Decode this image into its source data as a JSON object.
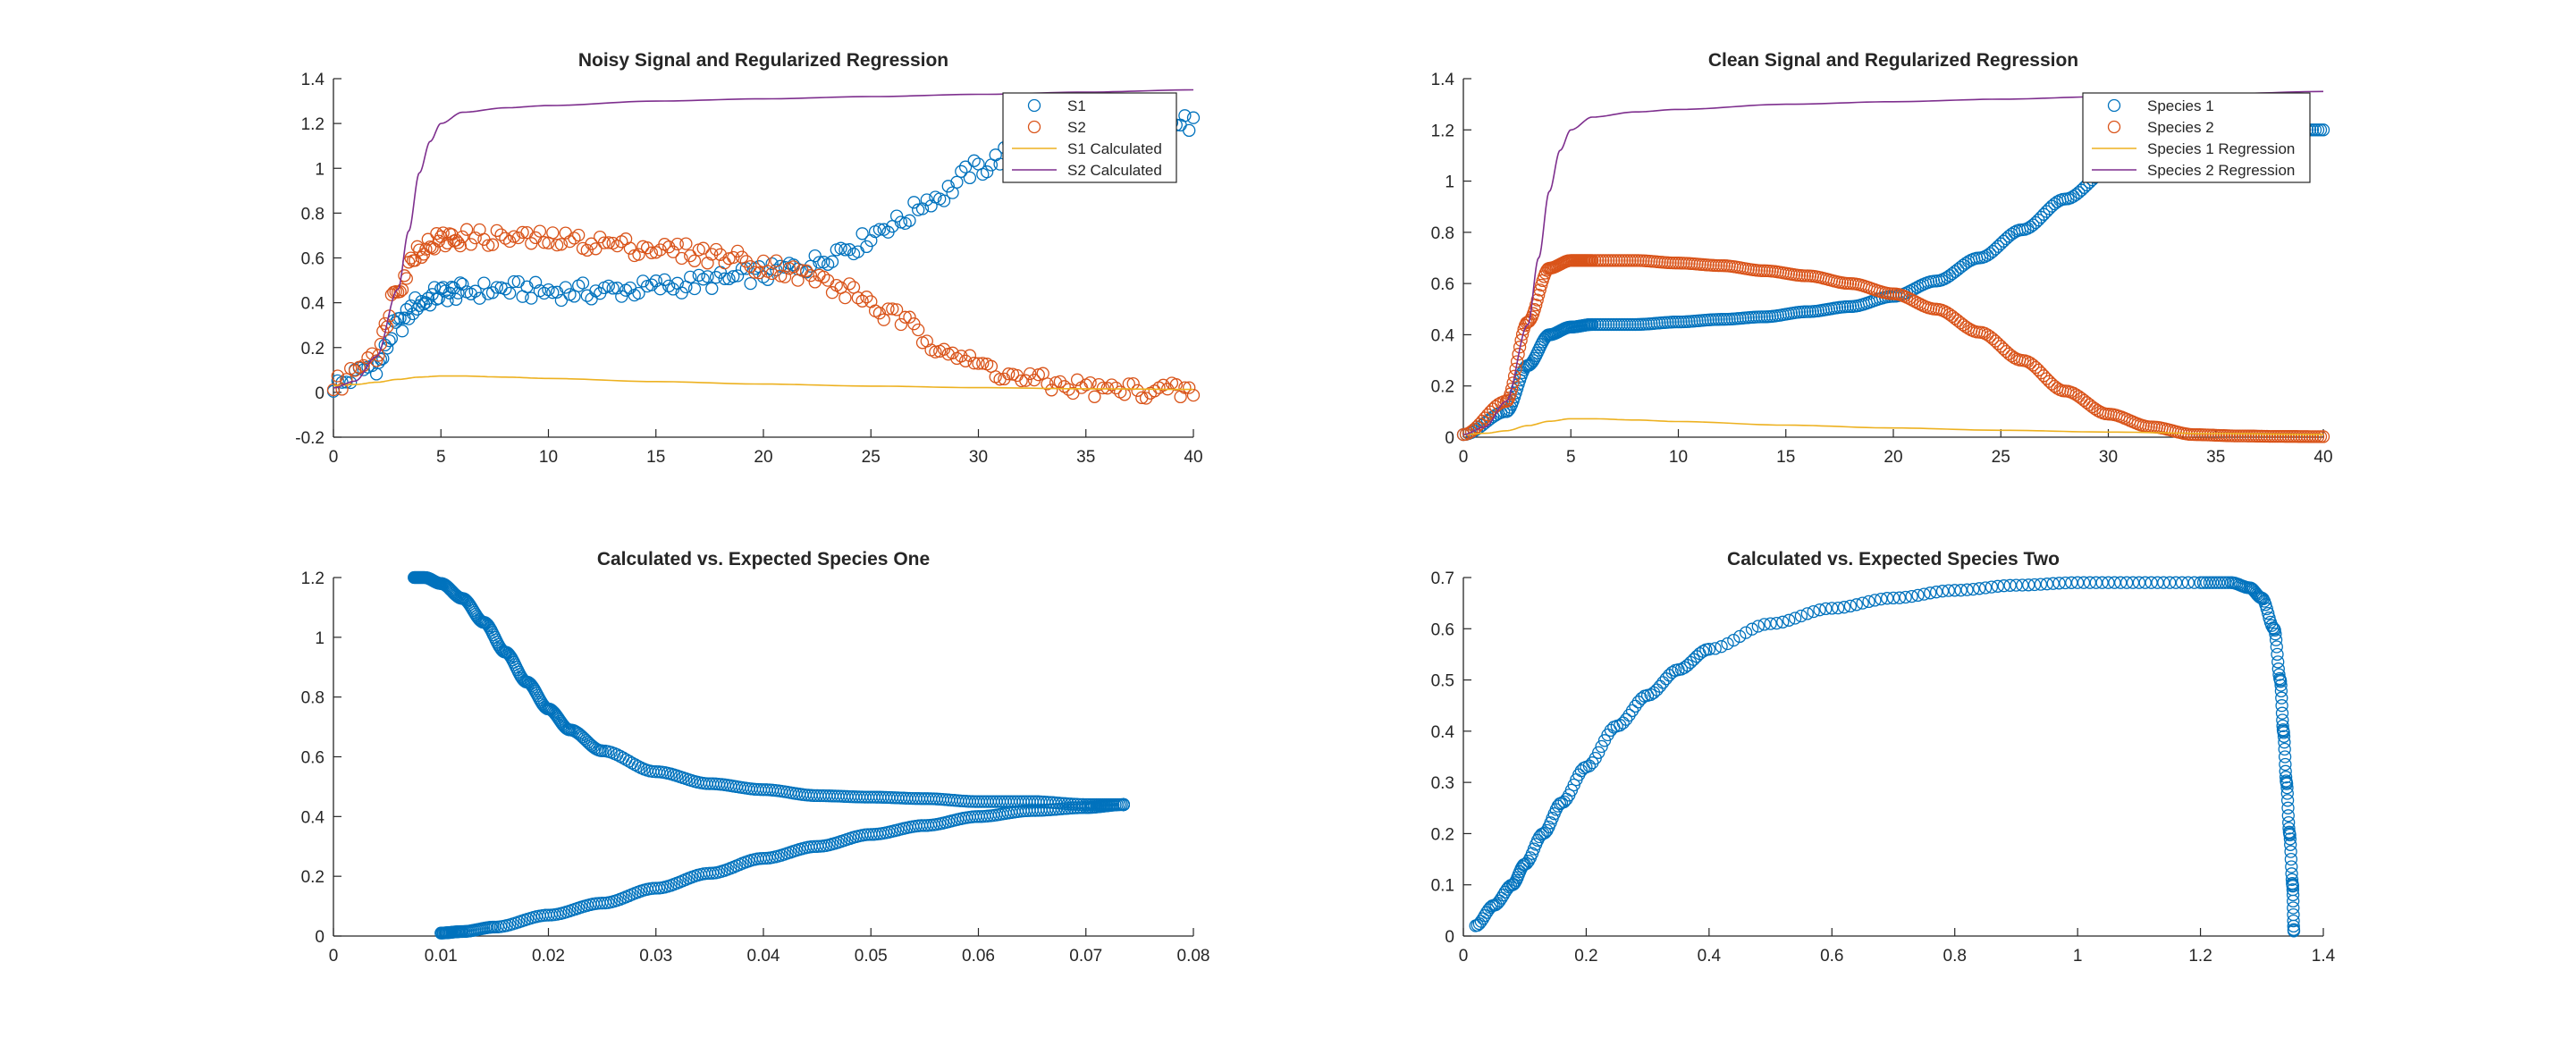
{
  "figure": {
    "colors": {
      "blue": "#0072BD",
      "orange": "#D95319",
      "yellow": "#EDB120",
      "purple": "#7E2F8E",
      "axis": "#262626"
    }
  },
  "chart_data": [
    {
      "type": "scatter",
      "title": "Noisy Signal and Regularized Regression",
      "xlabel": "",
      "ylabel": "",
      "xlim": [
        0,
        40
      ],
      "ylim": [
        -0.2,
        1.4
      ],
      "xticks": [
        "0",
        "5",
        "10",
        "15",
        "20",
        "25",
        "30",
        "35",
        "40"
      ],
      "yticks": [
        "-0.2",
        "0",
        "0.2",
        "0.4",
        "0.6",
        "0.8",
        "1",
        "1.2",
        "1.4"
      ],
      "grid": false,
      "legend_position": "top-right",
      "series": [
        {
          "name": "S1",
          "kind": "markers",
          "color": "#0072BD",
          "x": [
            0,
            2,
            3,
            4,
            5,
            6,
            8,
            10,
            12,
            14,
            16,
            18,
            20,
            22,
            24,
            26,
            28,
            30,
            32,
            34,
            36,
            38,
            40
          ],
          "y": [
            0.03,
            0.12,
            0.3,
            0.4,
            0.44,
            0.45,
            0.46,
            0.45,
            0.45,
            0.46,
            0.48,
            0.5,
            0.53,
            0.57,
            0.65,
            0.75,
            0.87,
            1.0,
            1.1,
            1.17,
            1.2,
            1.2,
            1.2
          ]
        },
        {
          "name": "S2",
          "kind": "markers",
          "color": "#D95319",
          "x": [
            0,
            2,
            3,
            4,
            5,
            6,
            8,
            10,
            12,
            14,
            16,
            18,
            20,
            22,
            24,
            26,
            28,
            30,
            32,
            34,
            36,
            38,
            40
          ],
          "y": [
            0.03,
            0.18,
            0.48,
            0.64,
            0.68,
            0.69,
            0.69,
            0.68,
            0.67,
            0.65,
            0.63,
            0.61,
            0.57,
            0.52,
            0.45,
            0.34,
            0.22,
            0.12,
            0.06,
            0.03,
            0.01,
            0.01,
            0.0
          ]
        },
        {
          "name": "S1 Calculated",
          "kind": "line",
          "color": "#EDB120",
          "x": [
            0,
            1,
            2,
            3,
            4,
            5,
            6,
            8,
            10,
            15,
            20,
            25,
            30,
            35,
            40
          ],
          "y": [
            0.03,
            0.035,
            0.045,
            0.058,
            0.068,
            0.073,
            0.073,
            0.068,
            0.062,
            0.048,
            0.037,
            0.028,
            0.021,
            0.016,
            0.013
          ]
        },
        {
          "name": "S2 Calculated",
          "kind": "line",
          "color": "#7E2F8E",
          "x": [
            0,
            1,
            2,
            3,
            3.5,
            4,
            4.5,
            5,
            6,
            8,
            10,
            15,
            20,
            25,
            30,
            35,
            40
          ],
          "y": [
            0.02,
            0.05,
            0.16,
            0.46,
            0.72,
            0.98,
            1.12,
            1.2,
            1.25,
            1.27,
            1.28,
            1.3,
            1.31,
            1.32,
            1.33,
            1.34,
            1.35
          ]
        }
      ]
    },
    {
      "type": "scatter",
      "title": "Clean Signal and Regularized Regression",
      "xlabel": "",
      "ylabel": "",
      "xlim": [
        0,
        40
      ],
      "ylim": [
        0,
        1.4
      ],
      "xticks": [
        "0",
        "5",
        "10",
        "15",
        "20",
        "25",
        "30",
        "35",
        "40"
      ],
      "yticks": [
        "0",
        "0.2",
        "0.4",
        "0.6",
        "0.8",
        "1",
        "1.2",
        "1.4"
      ],
      "grid": false,
      "legend_position": "top-right",
      "series": [
        {
          "name": "Species 1",
          "kind": "markers",
          "color": "#0072BD",
          "x": [
            0,
            2,
            3,
            4,
            5,
            6,
            8,
            10,
            12,
            14,
            16,
            18,
            20,
            22,
            24,
            26,
            28,
            30,
            32,
            34,
            36,
            38,
            40
          ],
          "y": [
            0.01,
            0.1,
            0.28,
            0.4,
            0.43,
            0.44,
            0.44,
            0.45,
            0.46,
            0.47,
            0.49,
            0.51,
            0.55,
            0.61,
            0.7,
            0.81,
            0.93,
            1.04,
            1.12,
            1.17,
            1.19,
            1.2,
            1.2
          ]
        },
        {
          "name": "Species 2",
          "kind": "markers",
          "color": "#D95319",
          "x": [
            0,
            2,
            3,
            4,
            5,
            6,
            8,
            10,
            12,
            14,
            16,
            18,
            20,
            22,
            24,
            26,
            28,
            30,
            32,
            34,
            36,
            38,
            40
          ],
          "y": [
            0.01,
            0.14,
            0.45,
            0.66,
            0.69,
            0.69,
            0.69,
            0.68,
            0.67,
            0.65,
            0.63,
            0.6,
            0.56,
            0.5,
            0.41,
            0.3,
            0.18,
            0.09,
            0.04,
            0.01,
            0.005,
            0.003,
            0.002
          ]
        },
        {
          "name": "Species 1 Regression",
          "kind": "line",
          "color": "#EDB120",
          "x": [
            0,
            1,
            2,
            3,
            4,
            5,
            6,
            8,
            10,
            15,
            20,
            25,
            30,
            35,
            40
          ],
          "y": [
            0.01,
            0.015,
            0.025,
            0.045,
            0.062,
            0.072,
            0.072,
            0.067,
            0.061,
            0.047,
            0.036,
            0.027,
            0.02,
            0.014,
            0.01
          ]
        },
        {
          "name": "Species 2 Regression",
          "kind": "line",
          "color": "#7E2F8E",
          "x": [
            0,
            1,
            2,
            3,
            3.5,
            4,
            4.5,
            5,
            6,
            8,
            10,
            15,
            20,
            25,
            30,
            35,
            40
          ],
          "y": [
            0.01,
            0.04,
            0.14,
            0.44,
            0.7,
            0.96,
            1.12,
            1.2,
            1.25,
            1.27,
            1.28,
            1.3,
            1.31,
            1.32,
            1.33,
            1.34,
            1.35
          ]
        }
      ]
    },
    {
      "type": "scatter",
      "title": "Calculated vs. Expected Species One",
      "xlabel": "",
      "ylabel": "",
      "xlim": [
        0,
        0.08
      ],
      "ylim": [
        0,
        1.2
      ],
      "xticks": [
        "0",
        "0.01",
        "0.02",
        "0.03",
        "0.04",
        "0.05",
        "0.06",
        "0.07",
        "0.08"
      ],
      "yticks": [
        "0",
        "0.2",
        "0.4",
        "0.6",
        "0.8",
        "1",
        "1.2"
      ],
      "grid": false,
      "series": [
        {
          "name": "",
          "kind": "markers",
          "color": "#0072BD",
          "x": [
            0.01,
            0.012,
            0.015,
            0.02,
            0.025,
            0.03,
            0.035,
            0.04,
            0.045,
            0.05,
            0.055,
            0.06,
            0.065,
            0.07,
            0.0735,
            0.0735,
            0.07,
            0.065,
            0.06,
            0.055,
            0.05,
            0.045,
            0.04,
            0.035,
            0.03,
            0.025,
            0.022,
            0.02,
            0.018,
            0.016,
            0.014,
            0.012,
            0.01,
            0.0085,
            0.0075
          ],
          "y": [
            0.01,
            0.015,
            0.03,
            0.07,
            0.11,
            0.16,
            0.21,
            0.26,
            0.3,
            0.34,
            0.37,
            0.4,
            0.42,
            0.43,
            0.44,
            0.44,
            0.44,
            0.45,
            0.45,
            0.46,
            0.465,
            0.47,
            0.49,
            0.51,
            0.55,
            0.62,
            0.69,
            0.76,
            0.85,
            0.95,
            1.05,
            1.13,
            1.18,
            1.2,
            1.2
          ]
        }
      ]
    },
    {
      "type": "scatter",
      "title": "Calculated vs. Expected Species Two",
      "xlabel": "",
      "ylabel": "",
      "xlim": [
        0,
        1.4
      ],
      "ylim": [
        0,
        0.7
      ],
      "xticks": [
        "0",
        "0.2",
        "0.4",
        "0.6",
        "0.8",
        "1",
        "1.2",
        "1.4"
      ],
      "yticks": [
        "0",
        "0.1",
        "0.2",
        "0.3",
        "0.4",
        "0.5",
        "0.6",
        "0.7"
      ],
      "grid": false,
      "series": [
        {
          "name": "",
          "kind": "markers",
          "color": "#0072BD",
          "x": [
            0.02,
            0.05,
            0.08,
            0.1,
            0.13,
            0.16,
            0.2,
            0.25,
            0.3,
            0.35,
            0.4,
            0.5,
            0.6,
            0.7,
            0.8,
            0.9,
            1.0,
            1.1,
            1.2,
            1.25,
            1.28,
            1.3,
            1.32,
            1.33,
            1.335,
            1.34,
            1.345,
            1.35,
            1.352
          ],
          "y": [
            0.02,
            0.06,
            0.1,
            0.14,
            0.2,
            0.26,
            0.33,
            0.41,
            0.47,
            0.52,
            0.56,
            0.61,
            0.64,
            0.66,
            0.675,
            0.685,
            0.69,
            0.69,
            0.69,
            0.69,
            0.68,
            0.66,
            0.6,
            0.5,
            0.4,
            0.3,
            0.2,
            0.1,
            0.01
          ]
        }
      ]
    }
  ]
}
